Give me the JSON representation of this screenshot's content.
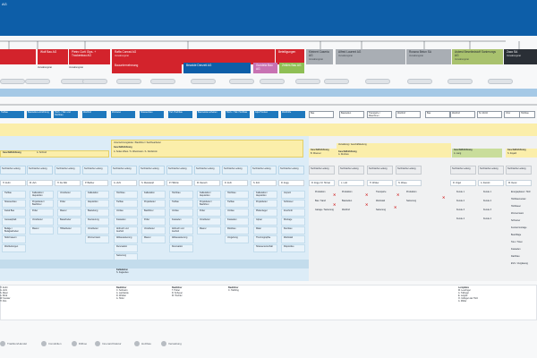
{
  "header": {
    "title": "AG"
  },
  "companies": [
    {
      "label": "",
      "sub": "",
      "color": "#d3232c",
      "light": false
    },
    {
      "label": "Wolf Bau AG",
      "sub": "",
      "color": "#d3232c",
      "light": false
    },
    {
      "label": "Pietro Curti Gips- + Trockenbau AG",
      "sub": "",
      "color": "#d3232c",
      "light": false
    },
    {
      "label": "Raffa Conrad AG",
      "sub": "Verwaltungsrat",
      "color": "#d3232c",
      "light": false
    },
    {
      "label": "Beteiligungen",
      "sub": "",
      "color": "#d3232c",
      "light": false
    },
    {
      "label": "Kleinert Caseria AG",
      "sub": "Verwaltungsrat",
      "color": "#a9aeb4",
      "light": true
    },
    {
      "label": "Alfred Laurent AG",
      "sub": "Verwaltungsrat",
      "color": "#a9aeb4",
      "light": true
    },
    {
      "label": "Russna Belun SA",
      "sub": "Verwaltungsrat",
      "color": "#a9aeb4",
      "light": true
    },
    {
      "label": "Asbest Beseitedstoff Sanierungs AG",
      "sub": "Verwaltungsrat",
      "color": "#a9c26e",
      "light": true
    },
    {
      "label": "Zaco SA",
      "sub": "Verwaltungsrat",
      "color": "#2a2f36",
      "light": false
    }
  ],
  "sub_companies": [
    {
      "label": "Bauunternehmung",
      "color": "#d3232c"
    },
    {
      "label": "Bezalde Denzeli AG",
      "color": "#0d5ea8"
    },
    {
      "label": "Gundela Bau AG",
      "color": "#c873b3"
    },
    {
      "label": "Zeldes Bau AG",
      "color": "#8fbf55"
    }
  ],
  "vr_labels": [
    "Verwaltungsrat",
    "Verwaltungsrat"
  ],
  "band_blue": {
    "label": ""
  },
  "band_yellow": {
    "label": ""
  },
  "band_lightblue": {
    "label": ""
  },
  "depts_left": [
    {
      "label": "Tiefbau"
    },
    {
      "label": "Baustellen-einrichtung"
    },
    {
      "label": "Hoch- / Tief- und Hochbau"
    },
    {
      "label": "Werkhof"
    },
    {
      "label": "Zimmerei"
    },
    {
      "label": "Strassenbau"
    },
    {
      "label": "Tief- Hochbau"
    },
    {
      "label": "Baumeister-arbeiten"
    },
    {
      "label": "Hoch- / Tief- Hochbau"
    },
    {
      "label": "Gips/Trocken"
    },
    {
      "label": "Werkhöfe"
    }
  ],
  "depts_right": [
    {
      "label": "Bau"
    },
    {
      "label": "Baustellen"
    },
    {
      "label": "Transporte / Maschinen"
    },
    {
      "label": "Werkhof"
    },
    {
      "label": "Bau"
    },
    {
      "label": "Werkhof"
    },
    {
      "label": "St. Moritz"
    },
    {
      "label": "Chur"
    },
    {
      "label": "Holzbau"
    }
  ],
  "left_group": {
    "title": "Unternehmungsleiter / Bauführer / Sachbearbeiter",
    "gf": "Geschäftsführung",
    "gf_names": "A. Soder-Wiest / S. Wiestmann / A. Nordstrom",
    "gf2": "Geschäftsführung",
    "gf2_names": "A. Schmid"
  },
  "right_group": {
    "gf": "Geschäftsführung",
    "gf_names": "B. Wiesner",
    "vertrieb": "Verwaltung / Geschäftsleitung",
    "vertrieb_names": "A. Roth",
    "gf_a": "Geschäftsführung",
    "gf_a_names": "A. Dreifuss",
    "gf_b": "Geschäftsführung",
    "gf_b_names": "A. Lang",
    "gf_c": "Geschäftsführung",
    "gf_c_names": "S. Zayatil"
  },
  "tech_heads": [
    {
      "label": "Technische Leitung"
    },
    {
      "label": "Technische Leitung"
    },
    {
      "label": "Technische Leitung"
    },
    {
      "label": "Technische Leitung"
    },
    {
      "label": "Technische Leitung"
    },
    {
      "label": "Technische Leitung"
    },
    {
      "label": "Technische Leitung"
    },
    {
      "label": "Technische Leitung"
    },
    {
      "label": "Technische Leitung"
    },
    {
      "label": "Technische Leitung"
    },
    {
      "label": "Technische Leitung"
    },
    {
      "label": "Technische Leitung"
    },
    {
      "label": "Technische Leitung"
    },
    {
      "label": "Technische Leitung"
    },
    {
      "label": "Technische Leitung"
    },
    {
      "label": "Technische Leitung"
    },
    {
      "label": "Technische Leitung"
    },
    {
      "label": "Technische Leitung"
    }
  ],
  "managers": [
    {
      "label": "H. Zerbi"
    },
    {
      "label": "M. Zeh"
    },
    {
      "label": "H. De Witt"
    },
    {
      "label": "P. Barbier"
    },
    {
      "label": "G. Zehr"
    },
    {
      "label": "S. Weisskopf"
    },
    {
      "label": "P. Hilbrink"
    },
    {
      "label": "M. Danuch"
    },
    {
      "label": "D. Zehr"
    },
    {
      "label": "S. Zolt"
    },
    {
      "label": "R. Zegg"
    },
    {
      "label": "R. Zogg / M. Horvat"
    },
    {
      "label": "L. Lotz"
    },
    {
      "label": "H. Wicker"
    },
    {
      "label": "N. Wiese"
    },
    {
      "label": "R. Vogel"
    },
    {
      "label": "A. Zanotti"
    },
    {
      "label": "M. Dessi"
    }
  ],
  "left_columns": [
    [
      "Tiefbau",
      "Strassenbau",
      "Kanal Bau",
      "Gussasphalt",
      "Beläge / Belagsarbeiten",
      "Stützmauern",
      "Werkleitungen"
    ],
    [
      "Kalkulation / Akquisition",
      "Projektleiter / Bauführer",
      "Polier",
      "Vorarbeiter",
      "Maurer"
    ],
    [
      "Vorarbeiter",
      "Polier",
      "Maurer",
      "Bauarbeiter",
      "Hilfsarbeiter"
    ],
    [
      "Kalkulation",
      "Akquisition",
      "Bauleitung",
      "Devisierung",
      "Vorarbeiter",
      "Zimmermann"
    ],
    [
      "Hochbau",
      "Tiefbau",
      "Umbau",
      "Fassaden",
      "Abbruch und Aushub",
      "Altbausanierung",
      "Renovation",
      "Sanierung"
    ],
    [
      "Kalkulation",
      "Projektleiter",
      "Bauführer",
      "Polier",
      "Vorarbeiter",
      "Maurer"
    ],
    [
      "Hochbau",
      "Tiefbau",
      "Umbau",
      "Fassaden",
      "Abbruch und Aushub",
      "Altbausanierung",
      "Renovation"
    ],
    [
      "Kalkulation / Akquisition",
      "Projektleiter / Bauführer",
      "Polier",
      "Vorarbeiter",
      "Maurer"
    ],
    [
      "Hochbau",
      "Tiefbau",
      "Umbau",
      "Fassaden",
      "Rückbau",
      "Umgebung"
    ],
    [
      "Kalkulation / Akquisition",
      "Projektleiter",
      "Plattenleger",
      "Gipser",
      "Maler",
      "Thermographie",
      "Strassenunterhalt"
    ],
    [
      "Verputz",
      "Schlosser",
      "Zuschnitt",
      "Montage",
      "Kleinbau",
      "Werkstatt",
      "Dispositive"
    ]
  ],
  "right_columns": [
    [
      "Produktion",
      "Bau / Sand",
      "Garage / Sanierung"
    ],
    [
      "Produktion",
      "Baustellen",
      "Werkhof"
    ],
    [
      "Transporte",
      "Werkstatt",
      "Sanierung"
    ],
    [
      "Produktion",
      "Sanierung"
    ],
    [
      "Kunde 1",
      "Kunde 2",
      "Kunde 3",
      "Kunde 4"
    ],
    [
      "Kunde 1",
      "Kunde 2",
      "Kunde 3",
      "Kunde 4"
    ],
    [
      "Energieplaner / Holz",
      "Holzbaumeister",
      "Holzbauer",
      "Zimmermann",
      "Schreiner",
      "Fenstermontage",
      "Beschläge",
      "Tore / Türen",
      "Fassaden",
      "Dachbau",
      "EVC / Verglasung"
    ]
  ],
  "bottom_notes": [
    {
      "title": "",
      "lines": [
        "H. Zerbi",
        "G. Zehr",
        "S. Meier",
        "A. Wick",
        "W. Kessler",
        "H. Dos"
      ]
    },
    {
      "title": "Bauführer",
      "lines": [
        "C. Solmann",
        "A. Lambarde",
        "D. Winkler",
        "A. Hofer"
      ]
    },
    {
      "title": "Bauführer",
      "lines": [
        "T. Huber",
        "R. Scheuer",
        "M. Tischler"
      ]
    },
    {
      "title": "Bauführer",
      "lines": [
        "C. Helbling"
      ]
    },
    {
      "title": "Lernplätze",
      "lines": [
        "M. Leuzinger",
        "A. Tullinger",
        "E. Lelgraf",
        "O. Indlogen der Holz",
        "A. Müller"
      ]
    }
  ],
  "mid_note": {
    "title": "Kalkulation",
    "lines": [
      "S. Fagandes"
    ]
  },
  "legend": [
    {
      "label": "Tradition/Handel"
    },
    {
      "label": "Immobilien"
    },
    {
      "label": "Diliboo"
    },
    {
      "label": "Innenarchitektur"
    },
    {
      "label": "Holzbau"
    },
    {
      "label": "Verwaltung"
    }
  ]
}
